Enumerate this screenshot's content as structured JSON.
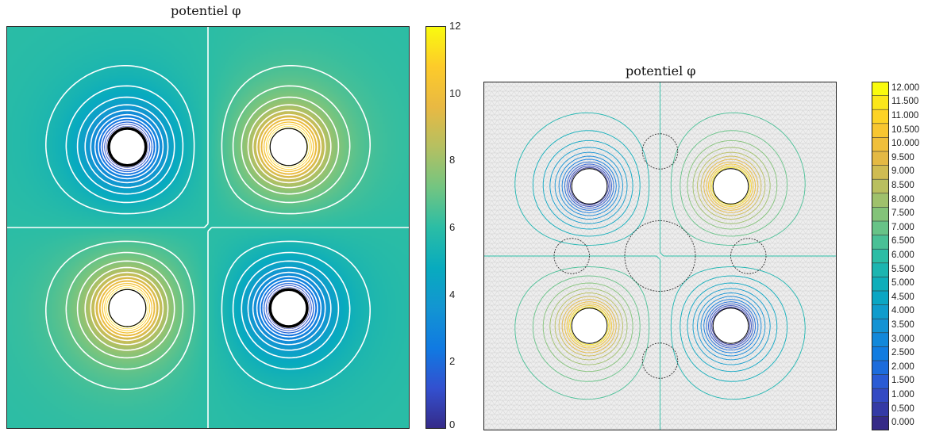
{
  "chart_data": [
    {
      "type": "heatmap",
      "title": "potentiel φ",
      "colormap": "parula",
      "contour_line_color": "#ffffff",
      "colorbar": {
        "ticks": [
          "0",
          "2",
          "4",
          "6",
          "8",
          "10",
          "12"
        ],
        "min": 0,
        "max": 12,
        "placement": "right"
      },
      "holes": [
        {
          "x": 0.3,
          "y": 0.7,
          "r": 0.046,
          "potential": 0
        },
        {
          "x": 0.7,
          "y": 0.7,
          "r": 0.046,
          "potential": 12
        },
        {
          "x": 0.3,
          "y": 0.3,
          "r": 0.046,
          "potential": 12
        },
        {
          "x": 0.7,
          "y": 0.3,
          "r": 0.046,
          "potential": 0
        }
      ]
    },
    {
      "type": "heatmap",
      "title": "potentiel φ",
      "colormap": "parula",
      "mesh_background": "#e6e6e6",
      "colorbar": {
        "levels": [
          "12.000",
          "11.500",
          "11.000",
          "10.500",
          "10.000",
          "9.500",
          "9.000",
          "8.500",
          "8.000",
          "7.500",
          "7.000",
          "6.500",
          "6.000",
          "5.500",
          "5.000",
          "4.500",
          "4.000",
          "3.500",
          "3.000",
          "2.500",
          "2.000",
          "1.500",
          "1.000",
          "0.500",
          "0.000"
        ],
        "placement": "right"
      },
      "holes": [
        {
          "x": 0.3,
          "y": 0.7,
          "r": 0.05,
          "potential": 0
        },
        {
          "x": 0.7,
          "y": 0.7,
          "r": 0.05,
          "potential": 12
        },
        {
          "x": 0.3,
          "y": 0.3,
          "r": 0.05,
          "potential": 12
        },
        {
          "x": 0.7,
          "y": 0.3,
          "r": 0.05,
          "potential": 0
        }
      ],
      "dielectric_regions": [
        {
          "x": 0.5,
          "y": 0.5,
          "r": 0.1
        },
        {
          "x": 0.5,
          "y": 0.8,
          "r": 0.05
        },
        {
          "x": 0.5,
          "y": 0.2,
          "r": 0.05
        },
        {
          "x": 0.25,
          "y": 0.5,
          "r": 0.05
        },
        {
          "x": 0.75,
          "y": 0.5,
          "r": 0.05
        }
      ]
    }
  ]
}
